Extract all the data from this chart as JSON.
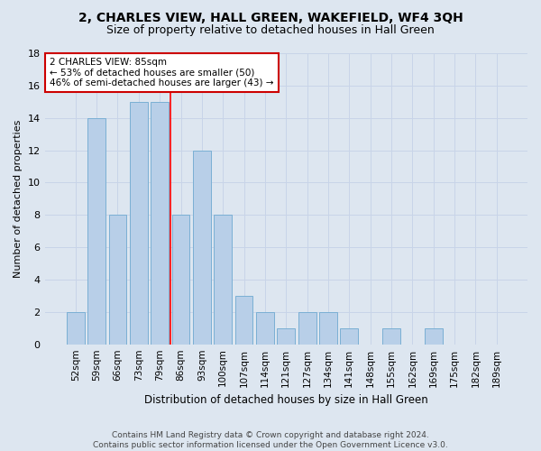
{
  "title": "2, CHARLES VIEW, HALL GREEN, WAKEFIELD, WF4 3QH",
  "subtitle": "Size of property relative to detached houses in Hall Green",
  "xlabel": "Distribution of detached houses by size in Hall Green",
  "ylabel": "Number of detached properties",
  "footer_line1": "Contains HM Land Registry data © Crown copyright and database right 2024.",
  "footer_line2": "Contains public sector information licensed under the Open Government Licence v3.0.",
  "categories": [
    "52sqm",
    "59sqm",
    "66sqm",
    "73sqm",
    "79sqm",
    "86sqm",
    "93sqm",
    "100sqm",
    "107sqm",
    "114sqm",
    "121sqm",
    "127sqm",
    "134sqm",
    "141sqm",
    "148sqm",
    "155sqm",
    "162sqm",
    "169sqm",
    "175sqm",
    "182sqm",
    "189sqm"
  ],
  "values": [
    2,
    14,
    8,
    15,
    15,
    8,
    12,
    8,
    3,
    2,
    1,
    2,
    2,
    1,
    0,
    1,
    0,
    1,
    0,
    0,
    0
  ],
  "bar_color": "#b8cfe8",
  "bar_edge_color": "#7aafd4",
  "grid_color": "#c8d4e8",
  "background_color": "#dde6f0",
  "red_line_x": 4.5,
  "annotation_box_text": "2 CHARLES VIEW: 85sqm\n← 53% of detached houses are smaller (50)\n46% of semi-detached houses are larger (43) →",
  "annotation_box_color": "#ffffff",
  "annotation_box_edge_color": "#cc0000",
  "ylim": [
    0,
    18
  ],
  "yticks": [
    0,
    2,
    4,
    6,
    8,
    10,
    12,
    14,
    16,
    18
  ],
  "title_fontsize": 10,
  "subtitle_fontsize": 9,
  "ylabel_fontsize": 8,
  "xlabel_fontsize": 8.5,
  "tick_fontsize": 8,
  "annot_fontsize": 7.5,
  "footer_fontsize": 6.5
}
